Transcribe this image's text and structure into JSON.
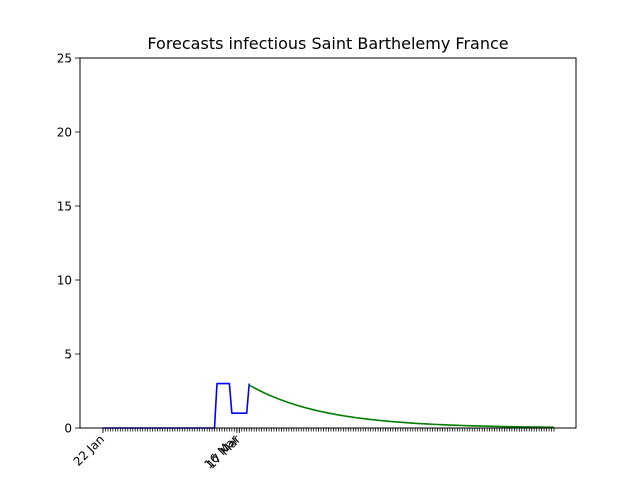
{
  "chart_data": {
    "type": "line",
    "title": "Forecasts infectious Saint Barthelemy France",
    "xlabel": "",
    "ylabel": "",
    "ylim": [
      0,
      25
    ],
    "yticks": [
      0,
      5,
      10,
      15,
      20,
      25
    ],
    "x_start_date": "2020-01-22",
    "x_end_date": "2020-07-22",
    "minor_tick_every_days": 1,
    "major_ticks": [
      {
        "date": "2020-01-22",
        "label": "22 Jan"
      },
      {
        "date": "2020-03-16",
        "label": "16 Mar"
      },
      {
        "date": "2020-03-17",
        "label": "17 Mar"
      }
    ],
    "grid": false,
    "legend": "none",
    "series": [
      {
        "color": "#0000ff",
        "points": [
          [
            "2020-01-22",
            0
          ],
          [
            "2020-03-07",
            0
          ],
          [
            "2020-03-08",
            3
          ],
          [
            "2020-03-13",
            3
          ],
          [
            "2020-03-14",
            1
          ],
          [
            "2020-03-20",
            1
          ],
          [
            "2020-03-21",
            3
          ]
        ]
      },
      {
        "color": "#008000",
        "curve": "exponential-decay",
        "start": [
          "2020-03-21",
          2.9
        ],
        "end": [
          "2020-07-22",
          0.05
        ],
        "points": [
          [
            "2020-03-21",
            2.9
          ],
          [
            "2020-04-01",
            2.0
          ],
          [
            "2020-04-15",
            1.25
          ],
          [
            "2020-05-01",
            0.78
          ],
          [
            "2020-05-15",
            0.5
          ],
          [
            "2020-06-01",
            0.3
          ],
          [
            "2020-06-15",
            0.18
          ],
          [
            "2020-07-01",
            0.11
          ],
          [
            "2020-07-22",
            0.05
          ]
        ]
      }
    ]
  }
}
